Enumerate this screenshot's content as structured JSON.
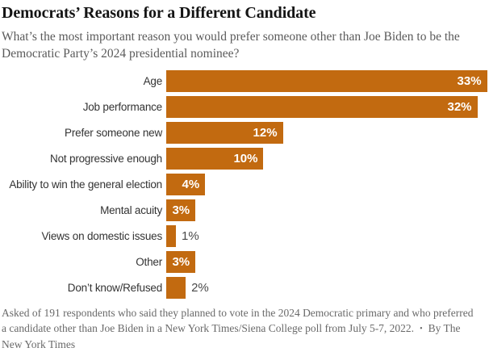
{
  "header": {
    "title": "Democrats’ Reasons for a Different Candidate",
    "subtitle": "What’s the most important reason you would prefer someone other than Joe Biden to be the Democratic Party’s 2024 presidential nominee?"
  },
  "chart_data": {
    "type": "bar",
    "orientation": "horizontal",
    "title": "Democrats’ Reasons for a Different Candidate",
    "categories": [
      "Age",
      "Job performance",
      "Prefer someone new",
      "Not progressive enough",
      "Ability to win the general election",
      "Mental acuity",
      "Views on domestic issues",
      "Other",
      "Don’t know/Refused"
    ],
    "values": [
      33,
      32,
      12,
      10,
      4,
      3,
      1,
      3,
      2
    ],
    "value_labels": [
      "33%",
      "32%",
      "12%",
      "10%",
      "4%",
      "3%",
      "1%",
      "3%",
      "2%"
    ],
    "xlabel": "",
    "ylabel": "",
    "xlim": [
      0,
      33.2
    ],
    "grid": false,
    "legend": "none",
    "bar_color": "#C26A10",
    "inside_label_color": "#ffffff",
    "outside_label_color": "#4a4a4a",
    "inside_label_min_value": 3
  },
  "footer": {
    "note": "Asked of 191 respondents who said they planned to vote in the 2024 Democratic primary and who preferred a candidate other than Joe Biden in a New York Times/Siena College poll from July 5-7, 2022.",
    "separator": "•",
    "byline": "By The New York Times"
  }
}
